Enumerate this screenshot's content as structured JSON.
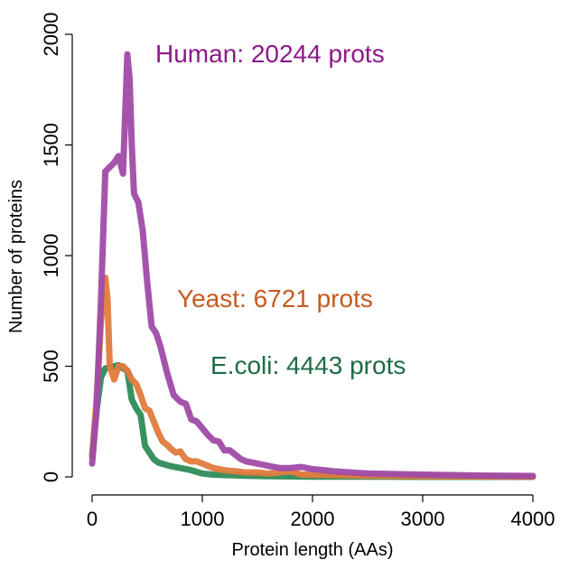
{
  "chart_data": {
    "type": "line",
    "title": "",
    "xlabel": "Protein length (AAs)",
    "ylabel": "Number of proteins",
    "xlim": [
      0,
      4000
    ],
    "ylim": [
      0,
      2000
    ],
    "xticks": [
      "0",
      "1000",
      "2000",
      "3000",
      "4000"
    ],
    "yticks": [
      "0",
      "500",
      "1000",
      "1500",
      "2000"
    ],
    "grid": false,
    "legend": "none",
    "annotations": [
      {
        "text": "Human: 20244 prots",
        "color": "#8B1A89",
        "series": "human"
      },
      {
        "text": "Yeast: 6721 prots",
        "color": "#C65A1E",
        "series": "yeast"
      },
      {
        "text": "E.coli: 4443 prots",
        "color": "#1E6B45",
        "series": "ecoli"
      }
    ],
    "series": [
      {
        "key": "ecoli",
        "color": "#2E8B57",
        "x": [
          0,
          40,
          80,
          120,
          160,
          200,
          240,
          280,
          320,
          360,
          400,
          440,
          480,
          520,
          560,
          600,
          700,
          800,
          900,
          1000,
          1100,
          1200,
          1400,
          1600,
          1800,
          2000,
          2500,
          3000,
          4000
        ],
        "y": [
          100,
          300,
          450,
          490,
          495,
          500,
          505,
          490,
          480,
          350,
          310,
          280,
          140,
          110,
          80,
          65,
          50,
          40,
          30,
          15,
          10,
          8,
          5,
          3,
          2,
          1,
          1,
          0,
          0
        ]
      },
      {
        "key": "yeast",
        "color": "#E07B3C",
        "x": [
          0,
          40,
          80,
          120,
          140,
          160,
          200,
          240,
          280,
          320,
          360,
          400,
          440,
          480,
          520,
          560,
          600,
          640,
          680,
          720,
          760,
          800,
          850,
          900,
          950,
          1000,
          1100,
          1200,
          1300,
          1400,
          1500,
          1600,
          1700,
          1800,
          1900,
          2000,
          2200,
          2500,
          3000,
          3500,
          4000
        ],
        "y": [
          90,
          350,
          700,
          900,
          800,
          500,
          440,
          500,
          500,
          480,
          440,
          420,
          370,
          310,
          300,
          250,
          200,
          160,
          145,
          125,
          110,
          115,
          80,
          70,
          70,
          60,
          40,
          30,
          25,
          20,
          20,
          15,
          20,
          25,
          10,
          10,
          8,
          5,
          3,
          2,
          1
        ]
      },
      {
        "key": "human",
        "color": "#A04BA8",
        "x": [
          0,
          40,
          80,
          120,
          160,
          200,
          240,
          280,
          320,
          340,
          360,
          380,
          420,
          460,
          500,
          540,
          580,
          620,
          680,
          740,
          800,
          850,
          900,
          950,
          1000,
          1050,
          1100,
          1150,
          1200,
          1250,
          1300,
          1350,
          1400,
          1450,
          1500,
          1550,
          1600,
          1650,
          1700,
          1800,
          1900,
          2000,
          2200,
          2500,
          3000,
          3500,
          4000
        ],
        "y": [
          60,
          300,
          800,
          1380,
          1400,
          1420,
          1450,
          1370,
          1910,
          1800,
          1500,
          1280,
          1240,
          1110,
          880,
          680,
          650,
          590,
          470,
          370,
          340,
          330,
          260,
          250,
          220,
          190,
          165,
          160,
          120,
          120,
          100,
          80,
          70,
          65,
          60,
          55,
          50,
          45,
          40,
          40,
          45,
          35,
          25,
          15,
          10,
          6,
          4
        ]
      }
    ]
  }
}
